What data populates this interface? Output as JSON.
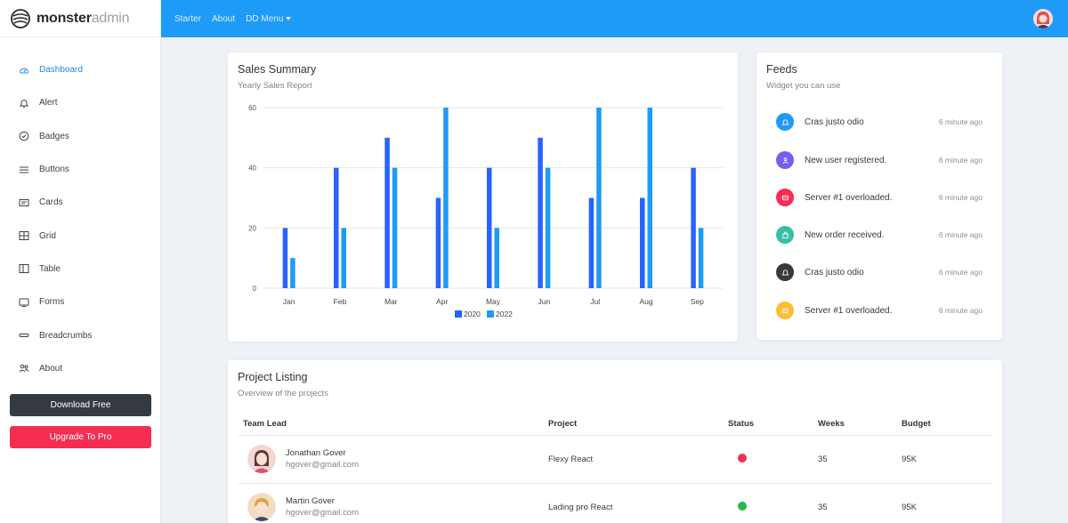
{
  "brand": {
    "bold": "monster",
    "light": "admin"
  },
  "topbar": {
    "links": [
      "Starter",
      "About",
      "DD Menu"
    ]
  },
  "sidebar": {
    "items": [
      {
        "label": "Dashboard",
        "icon": "dashboard-icon",
        "active": true
      },
      {
        "label": "Alert",
        "icon": "bell-icon"
      },
      {
        "label": "Badges",
        "icon": "check-circle-icon"
      },
      {
        "label": "Buttons",
        "icon": "list-icon"
      },
      {
        "label": "Cards",
        "icon": "card-icon"
      },
      {
        "label": "Grid",
        "icon": "grid-icon"
      },
      {
        "label": "Table",
        "icon": "table-icon"
      },
      {
        "label": "Forms",
        "icon": "form-icon"
      },
      {
        "label": "Breadcrumbs",
        "icon": "breadcrumb-icon"
      },
      {
        "label": "About",
        "icon": "people-icon"
      }
    ],
    "download_label": "Download Free",
    "upgrade_label": "Upgrade To Pro"
  },
  "sales": {
    "title": "Sales Summary",
    "subtitle": "Yearly Sales Report"
  },
  "chart_data": {
    "type": "bar",
    "categories": [
      "Jan",
      "Feb",
      "Mar",
      "Apr",
      "May",
      "Jun",
      "Jul",
      "Aug",
      "Sep"
    ],
    "series": [
      {
        "name": "2020",
        "color": "#2962ff",
        "values": [
          20,
          40,
          50,
          30,
          40,
          50,
          30,
          30,
          40
        ]
      },
      {
        "name": "2022",
        "color": "#1e9bf6",
        "values": [
          10,
          20,
          40,
          60,
          20,
          40,
          60,
          60,
          20
        ]
      }
    ],
    "yticks": [
      "0",
      "20",
      "40",
      "60"
    ],
    "ylim": [
      0,
      60
    ],
    "grid": true,
    "legend": "bottom"
  },
  "feeds": {
    "title": "Feeds",
    "subtitle": "Widget you can use",
    "items": [
      {
        "text": "Cras justo odio",
        "time": "6 minute ago",
        "color": "#1e9bf6",
        "icon": "bell-icon"
      },
      {
        "text": "New user registered.",
        "time": "6 minute ago",
        "color": "#7460ee",
        "icon": "user-icon"
      },
      {
        "text": "Server #1 overloaded.",
        "time": "6 minute ago",
        "color": "#f62d51",
        "icon": "server-icon"
      },
      {
        "text": "New order received.",
        "time": "6 minute ago",
        "color": "#36bea6",
        "icon": "bag-icon"
      },
      {
        "text": "Cras justo odio",
        "time": "6 minute ago",
        "color": "#343a40",
        "icon": "bell-icon"
      },
      {
        "text": "Server #1 overloaded.",
        "time": "6 minute ago",
        "color": "#ffbc34",
        "icon": "server-icon"
      }
    ]
  },
  "projects": {
    "title": "Project Listing",
    "subtitle": "Overview of the projects",
    "headers": [
      "Team Lead",
      "Project",
      "Status",
      "Weeks",
      "Budget"
    ],
    "rows": [
      {
        "name": "Jonathan Gover",
        "email": "hgover@gmail.com",
        "project": "Flexy React",
        "status_color": "#f62d51",
        "weeks": "35",
        "budget": "95K"
      },
      {
        "name": "Martin Gover",
        "email": "hgover@gmail.com",
        "project": "Lading pro React",
        "status_color": "#21b94b",
        "weeks": "35",
        "budget": "95K"
      }
    ]
  }
}
